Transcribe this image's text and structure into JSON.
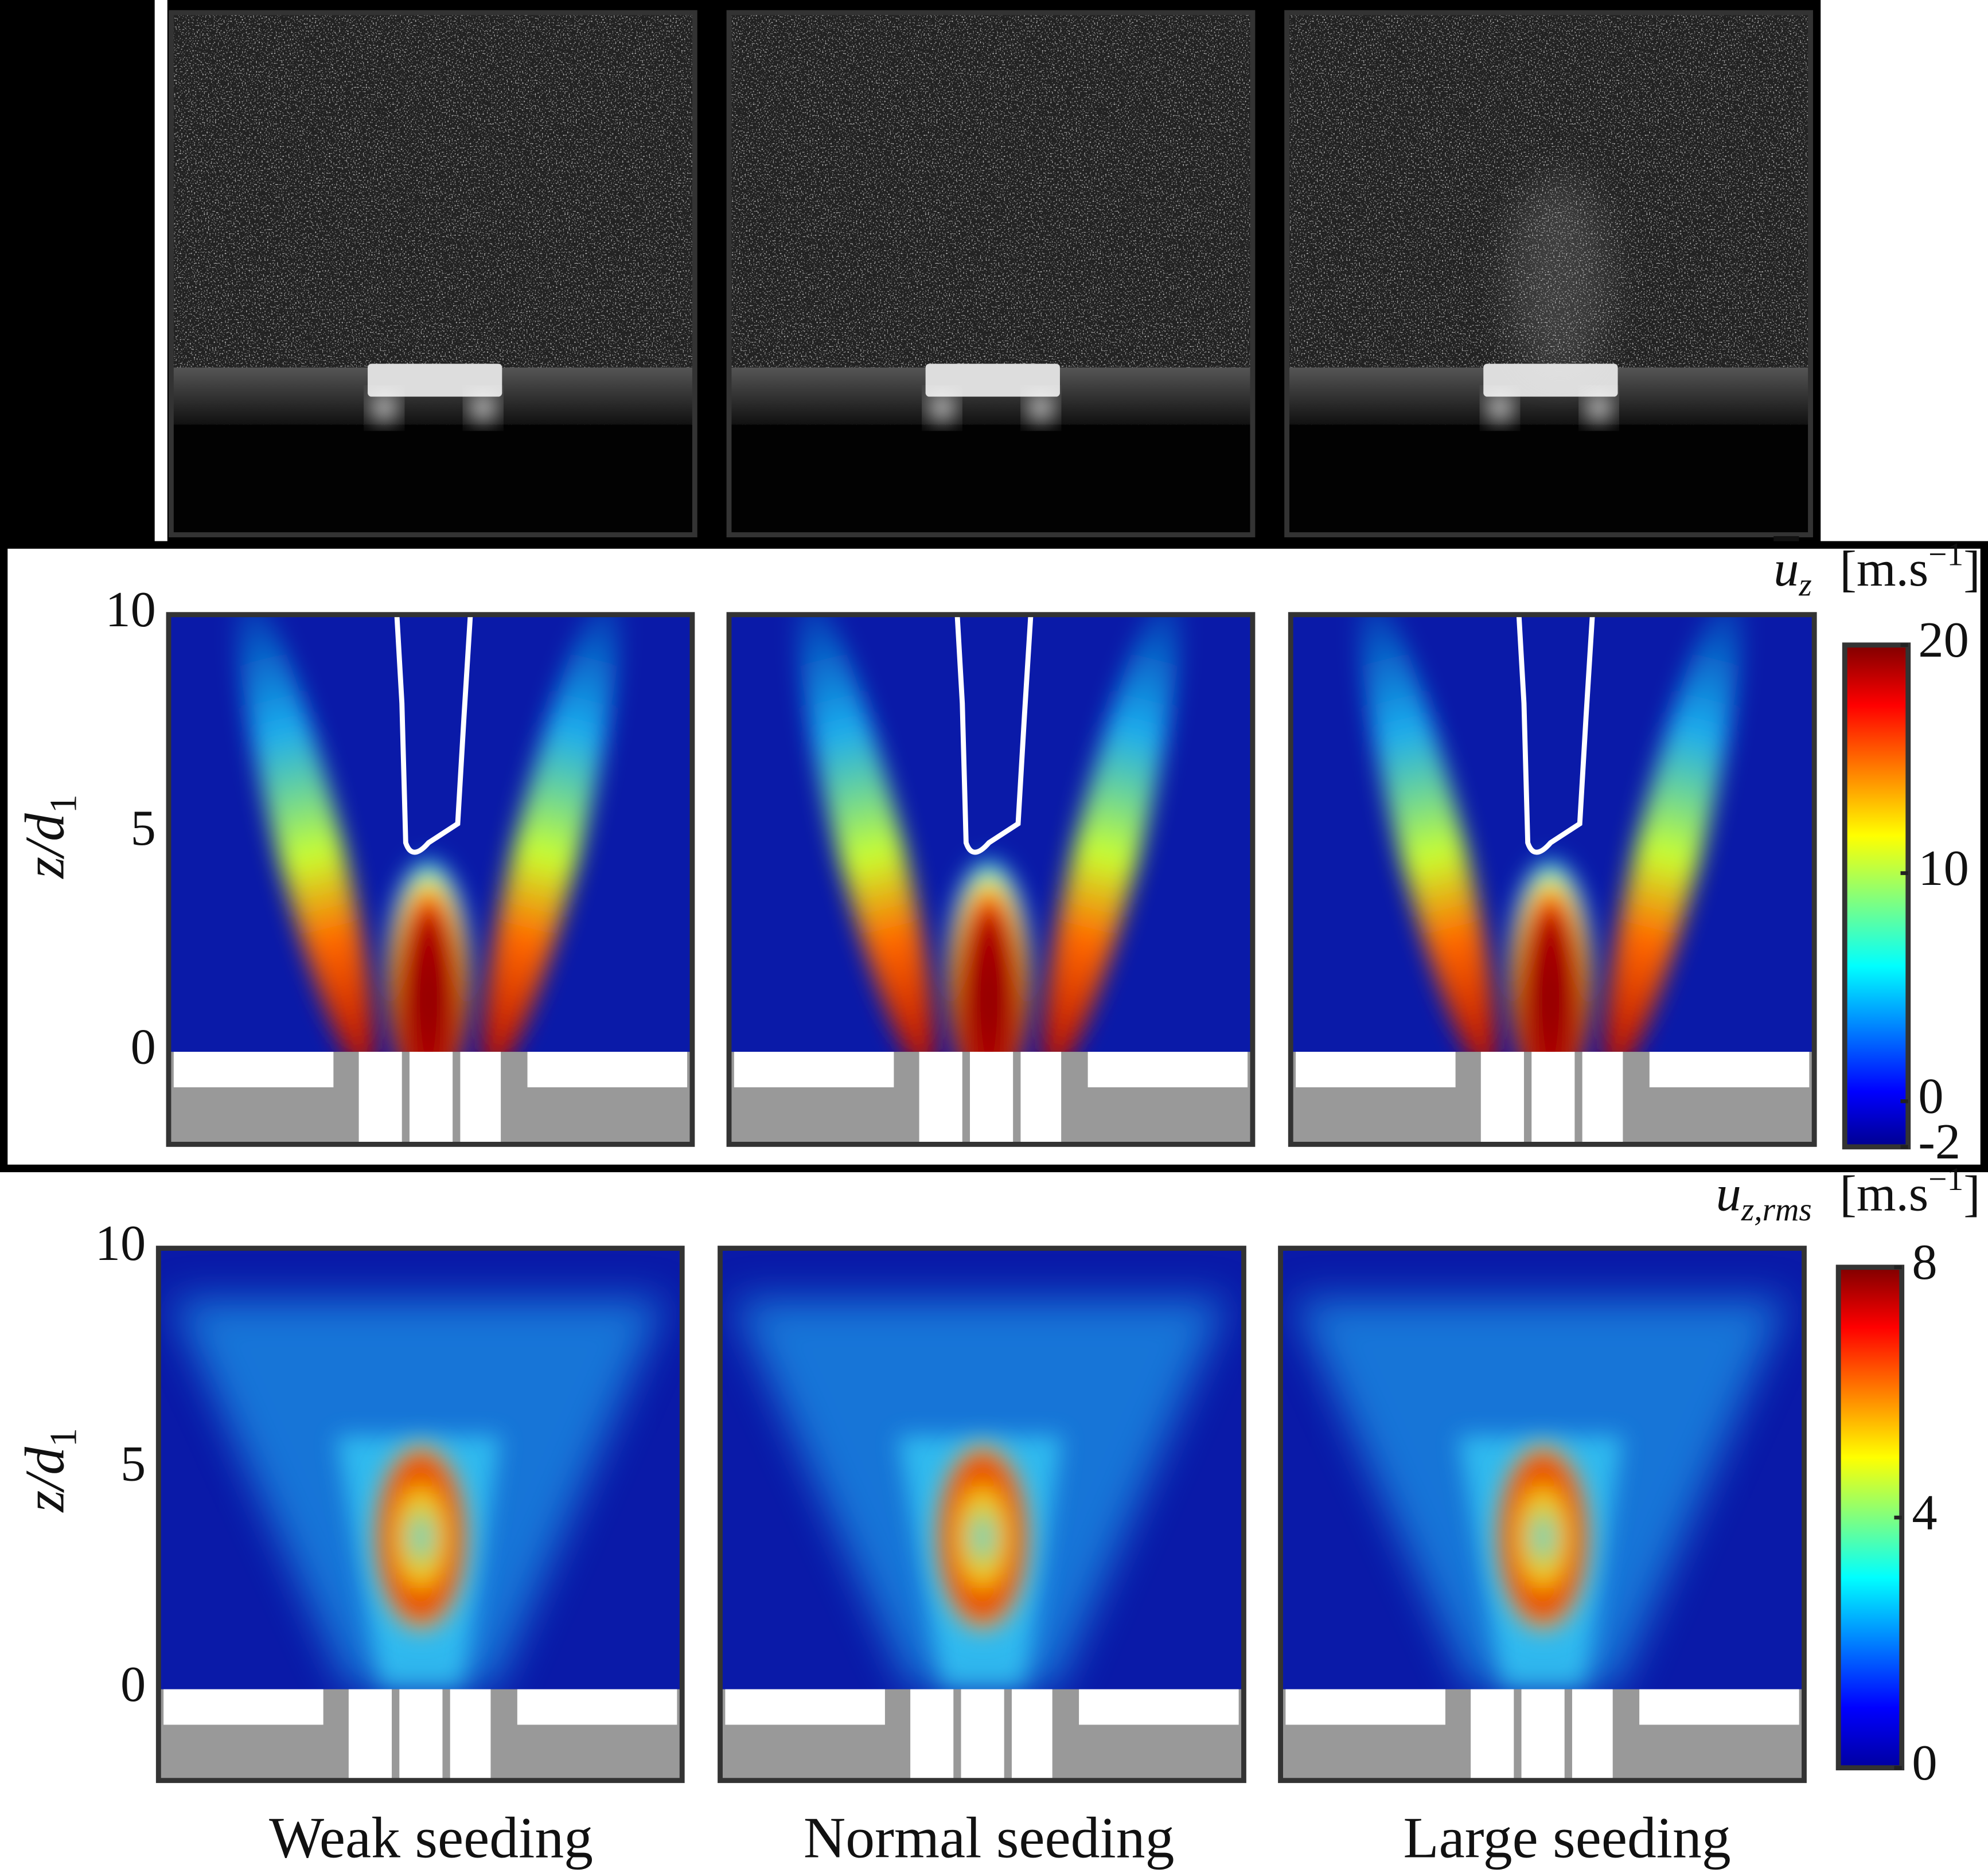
{
  "figure": {
    "columns": [
      "Weak seeding",
      "Normal seeding",
      "Large seeding"
    ],
    "rows": [
      {
        "y_label": [
          "z/d",
          "1"
        ],
        "yticks": [
          0,
          5,
          10
        ],
        "colorbar": {
          "symbol": [
            "u",
            "z"
          ],
          "unit": [
            "[m.s",
            "−1",
            "]"
          ],
          "ticks": [
            20,
            10,
            0,
            -2
          ]
        }
      },
      {
        "y_label": [
          "z/d",
          "1"
        ],
        "yticks": [
          0,
          5,
          10
        ],
        "colorbar": {
          "symbol": [
            "u",
            "z,rms"
          ],
          "unit": [
            "[m.s",
            "−1",
            "]"
          ],
          "ticks": [
            8,
            4,
            0
          ]
        }
      }
    ]
  }
}
